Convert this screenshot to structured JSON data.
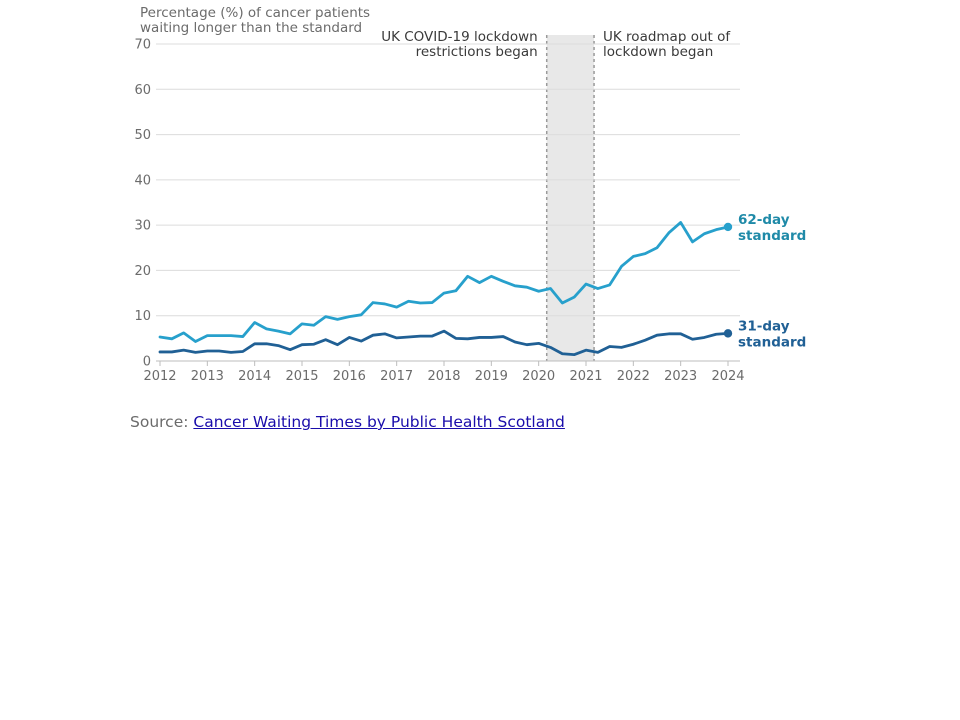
{
  "chart_data": {
    "type": "line",
    "ylabel_lines": [
      "Percentage (%) of cancer patients",
      "waiting longer than the standard"
    ],
    "xlabel": "",
    "ylim": [
      0,
      70
    ],
    "yticks": [
      0,
      10,
      20,
      30,
      40,
      50,
      60,
      70
    ],
    "xlim": [
      2012,
      2024
    ],
    "xticks": [
      2012,
      2013,
      2014,
      2015,
      2016,
      2017,
      2018,
      2019,
      2020,
      2021,
      2022,
      2023,
      2024
    ],
    "grid": true,
    "x": [
      2012.0,
      2012.25,
      2012.5,
      2012.75,
      2013.0,
      2013.25,
      2013.5,
      2013.75,
      2014.0,
      2014.25,
      2014.5,
      2014.75,
      2015.0,
      2015.25,
      2015.5,
      2015.75,
      2016.0,
      2016.25,
      2016.5,
      2016.75,
      2017.0,
      2017.25,
      2017.5,
      2017.75,
      2018.0,
      2018.25,
      2018.5,
      2018.75,
      2019.0,
      2019.25,
      2019.5,
      2019.75,
      2020.0,
      2020.25,
      2020.5,
      2020.75,
      2021.0,
      2021.25,
      2021.5,
      2021.75,
      2022.0,
      2022.25,
      2022.5,
      2022.75,
      2023.0,
      2023.25,
      2023.5,
      2023.75,
      2024.0
    ],
    "series": [
      {
        "name_lines": [
          "62-day",
          "standard"
        ],
        "color": "#27a0cc",
        "label_color": "#1f8aa8",
        "values": [
          5.3,
          4.9,
          6.2,
          4.3,
          5.6,
          5.6,
          5.6,
          5.4,
          8.5,
          7.1,
          6.6,
          6.0,
          8.2,
          7.9,
          9.8,
          9.2,
          9.8,
          10.2,
          12.9,
          12.6,
          11.9,
          13.2,
          12.8,
          12.9,
          15.0,
          15.5,
          18.7,
          17.3,
          18.7,
          17.6,
          16.6,
          16.3,
          15.4,
          16.0,
          12.8,
          14.1,
          17.0,
          16.0,
          16.8,
          20.9,
          23.1,
          23.7,
          25.0,
          28.3,
          30.6,
          26.3,
          28.1,
          29.0,
          29.6
        ]
      },
      {
        "name_lines": [
          "31-day",
          "standard"
        ],
        "color": "#206095",
        "label_color": "#206095",
        "values": [
          2.0,
          2.0,
          2.4,
          1.9,
          2.2,
          2.2,
          1.9,
          2.1,
          3.8,
          3.8,
          3.4,
          2.5,
          3.6,
          3.7,
          4.7,
          3.6,
          5.2,
          4.4,
          5.7,
          6.0,
          5.1,
          5.3,
          5.5,
          5.5,
          6.6,
          5.0,
          4.9,
          5.2,
          5.2,
          5.4,
          4.2,
          3.6,
          3.9,
          3.0,
          1.6,
          1.4,
          2.4,
          1.9,
          3.2,
          3.0,
          3.7,
          4.6,
          5.7,
          6.0,
          6.0,
          4.8,
          5.2,
          5.9,
          6.1
        ]
      }
    ],
    "shaded_region": {
      "from": 2020.17,
      "to": 2021.17,
      "color": "#e8e8e8"
    },
    "annotations": [
      {
        "lines": [
          "UK COVID-19 lockdown",
          "restrictions began"
        ],
        "x": 2020.17,
        "align": "right"
      },
      {
        "lines": [
          "UK roadmap out of",
          "lockdown began"
        ],
        "x": 2021.17,
        "align": "left"
      }
    ]
  },
  "source": {
    "prefix": "Source: ",
    "link_text": "Cancer Waiting Times by Public Health Scotland"
  }
}
